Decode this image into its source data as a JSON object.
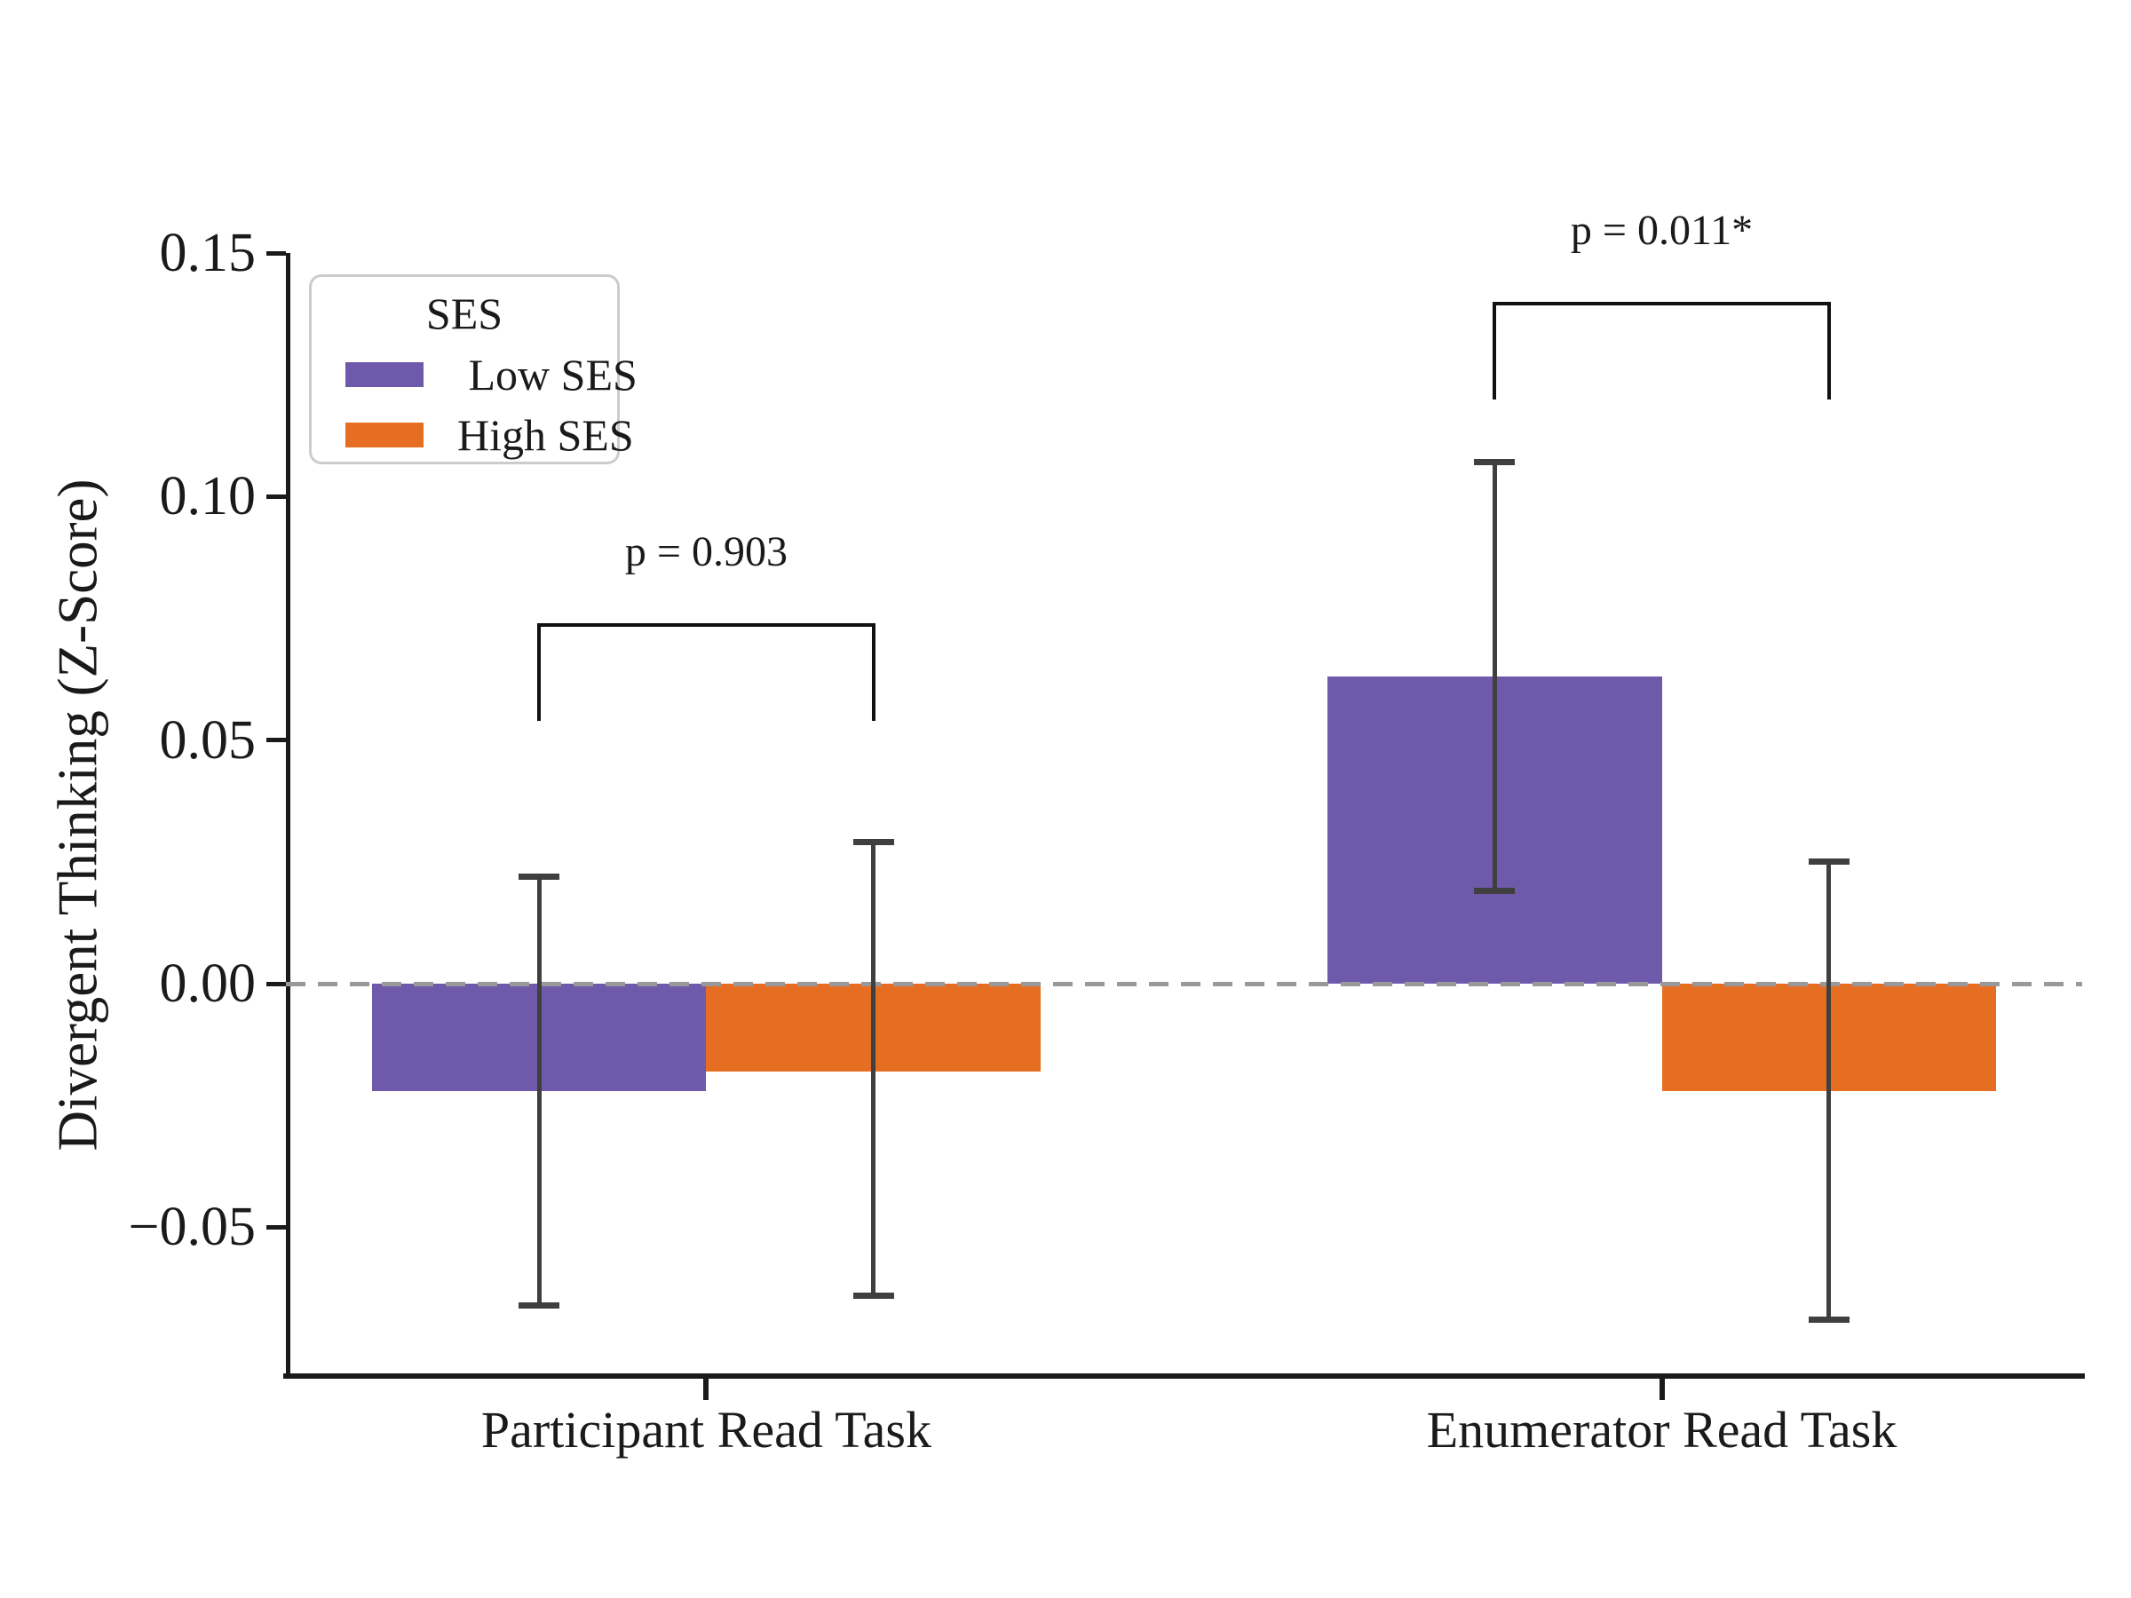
{
  "chart_data": {
    "type": "bar",
    "title": "",
    "xlabel": "",
    "ylabel": "Divergent Thinking (Z-Score)",
    "categories": [
      "Participant Read Task",
      "Enumerator Read Task"
    ],
    "series": [
      {
        "name": "Low SES",
        "color": "#6e59aa",
        "values": [
          -0.022,
          0.063
        ],
        "ci_low": [
          -0.066,
          0.019
        ],
        "ci_high": [
          0.022,
          0.107
        ]
      },
      {
        "name": "High SES",
        "color": "#e66e23",
        "values": [
          -0.018,
          -0.022
        ],
        "ci_low": [
          -0.064,
          -0.069
        ],
        "ci_high": [
          0.029,
          0.025
        ]
      }
    ],
    "annotations": [
      {
        "text": "p = 0.903",
        "category_index": 0,
        "bracket_top": 0.074,
        "bracket_drop_to": 0.054
      },
      {
        "text": "p = 0.011*",
        "category_index": 1,
        "bracket_top": 0.14,
        "bracket_drop_to": 0.12
      }
    ],
    "yticks": [
      {
        "value": 0.15,
        "label": "0.15"
      },
      {
        "value": 0.1,
        "label": "0.10"
      },
      {
        "value": 0.05,
        "label": "0.05"
      },
      {
        "value": 0.0,
        "label": "0.00"
      },
      {
        "value": -0.05,
        "label": "−0.05"
      }
    ],
    "ylim": [
      -0.08,
      0.15
    ],
    "xlim": [
      -0.44,
      1.44
    ],
    "bar_width": 0.35,
    "grid": false,
    "zero_line": {
      "style": "dashed",
      "color": "#999999"
    },
    "errorbar_color": "#3f3f3f",
    "axis_color": "#1a1a1a",
    "legend_position": "upper left"
  },
  "legend": {
    "title": "SES",
    "items": [
      {
        "label": " Low SES",
        "color": "#6e59aa"
      },
      {
        "label": "High SES",
        "color": "#e66e23"
      }
    ]
  }
}
